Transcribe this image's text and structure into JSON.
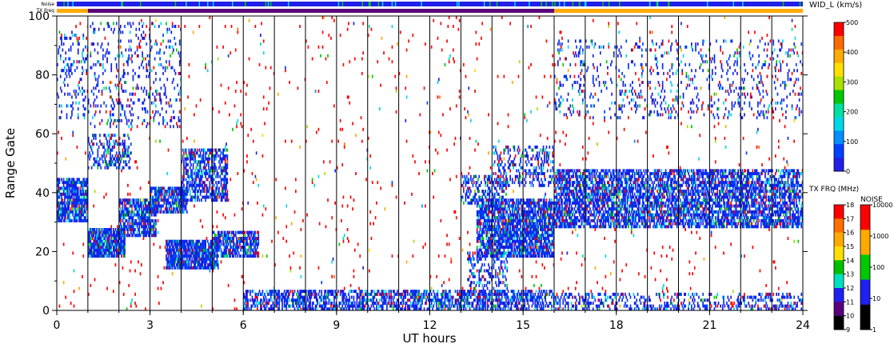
{
  "strips": {
    "noise_label": "Noise",
    "txfreq_label": "TX Freq"
  },
  "colorbars": {
    "width": {
      "title": "WID_L (km/s)",
      "ticks": [
        "500",
        "400",
        "300",
        "200",
        "100",
        "0"
      ],
      "colors": [
        "#ff0000",
        "#ff6a00",
        "#ffaa00",
        "#ffe000",
        "#a8e000",
        "#00c800",
        "#00e0a0",
        "#00d8e8",
        "#0090ff",
        "#0040ff",
        "#2020e8"
      ]
    },
    "txfreq": {
      "title": "TX FRQ (MHz)",
      "ticks": [
        "18",
        "17",
        "16",
        "15",
        "14",
        "13",
        "12",
        "11",
        "10",
        "9"
      ],
      "colors": [
        "#ff0000",
        "#ff7000",
        "#ffaa00",
        "#ffe000",
        "#00c000",
        "#00e0c0",
        "#2020f0",
        "#5a007a",
        "#000000"
      ]
    },
    "noise": {
      "title": "NOISE",
      "ticks": [
        "10000",
        "1000",
        "100",
        "10",
        "1"
      ],
      "colors": [
        "#ff0000",
        "#ffaa00",
        "#00c800",
        "#2020f0",
        "#000000"
      ]
    }
  },
  "chart_data": {
    "type": "heatmap",
    "title": "",
    "xlabel": "UT hours",
    "ylabel": "Range Gate",
    "xlim": [
      0,
      24
    ],
    "ylim": [
      0,
      100
    ],
    "xticks": [
      "0",
      "3",
      "6",
      "9",
      "12",
      "15",
      "18",
      "21",
      "24"
    ],
    "yticks": [
      "0",
      "20",
      "40",
      "60",
      "80",
      "100"
    ],
    "hour_lines": [
      1,
      2,
      3,
      4,
      5,
      6,
      7,
      8,
      9,
      10,
      11,
      12,
      13,
      14,
      15,
      16,
      17,
      18,
      19,
      20,
      21,
      22,
      23
    ],
    "tx_freq_segments": [
      {
        "start": 0,
        "end": 1,
        "color": "#ffaa00"
      },
      {
        "start": 1,
        "end": 16,
        "color": "#5a007a"
      },
      {
        "start": 16,
        "end": 24,
        "color": "#ffaa00"
      }
    ],
    "scatter_regions": [
      {
        "x": [
          0.0,
          1.0
        ],
        "y": [
          30,
          45
        ],
        "density": 0.75
      },
      {
        "x": [
          1.0,
          2.2
        ],
        "y": [
          18,
          28
        ],
        "density": 0.85
      },
      {
        "x": [
          2.0,
          3.2
        ],
        "y": [
          25,
          38
        ],
        "density": 0.75
      },
      {
        "x": [
          3.0,
          4.2
        ],
        "y": [
          33,
          42
        ],
        "density": 0.75
      },
      {
        "x": [
          4.0,
          5.5
        ],
        "y": [
          37,
          55
        ],
        "density": 0.55
      },
      {
        "x": [
          1.0,
          2.4
        ],
        "y": [
          48,
          60
        ],
        "density": 0.35
      },
      {
        "x": [
          3.5,
          5.2
        ],
        "y": [
          14,
          24
        ],
        "density": 0.85
      },
      {
        "x": [
          5.0,
          6.5
        ],
        "y": [
          18,
          27
        ],
        "density": 0.7
      },
      {
        "x": [
          0.0,
          1.0
        ],
        "y": [
          65,
          95
        ],
        "density": 0.15
      },
      {
        "x": [
          1.0,
          4.0
        ],
        "y": [
          62,
          98
        ],
        "density": 0.12
      },
      {
        "x": [
          6.0,
          16.0
        ],
        "y": [
          0,
          7
        ],
        "density": 0.55
      },
      {
        "x": [
          13.5,
          16.0
        ],
        "y": [
          18,
          38
        ],
        "density": 0.75
      },
      {
        "x": [
          13.0,
          14.5
        ],
        "y": [
          36,
          46
        ],
        "density": 0.35
      },
      {
        "x": [
          13.2,
          14.5
        ],
        "y": [
          5,
          20
        ],
        "density": 0.3
      },
      {
        "x": [
          14.0,
          16.0
        ],
        "y": [
          42,
          56
        ],
        "density": 0.3
      },
      {
        "x": [
          16.0,
          24.0
        ],
        "y": [
          28,
          48
        ],
        "density": 0.65
      },
      {
        "x": [
          16.0,
          24.0
        ],
        "y": [
          0,
          6
        ],
        "density": 0.3
      },
      {
        "x": [
          16.0,
          24.0
        ],
        "y": [
          65,
          92
        ],
        "density": 0.1
      },
      {
        "x": [
          0.0,
          24.0
        ],
        "y": [
          0,
          100
        ],
        "density": 0.015
      }
    ]
  }
}
